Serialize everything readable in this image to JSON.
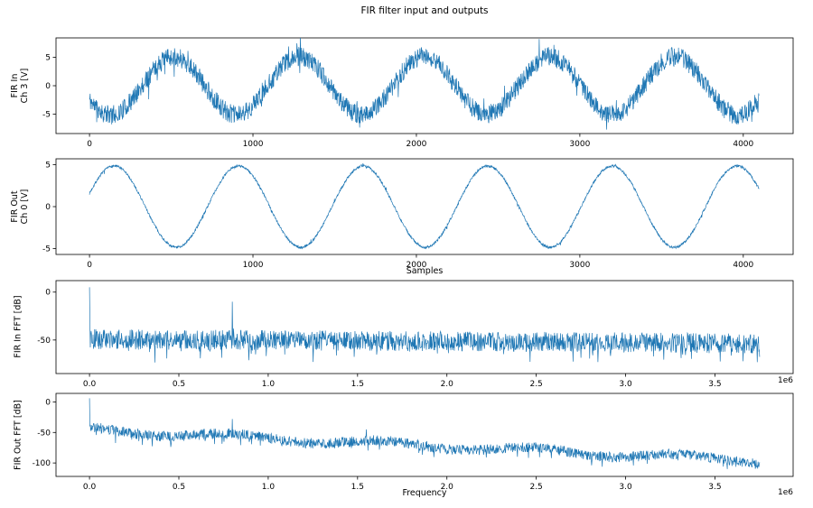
{
  "figure": {
    "title": "FIR filter input and outputs"
  },
  "axis_offset_label": "1e6",
  "chart_data": [
    {
      "id": "fir_in_time",
      "type": "line",
      "ylabel_lines": [
        "FIR In",
        "Ch 3 [V]"
      ],
      "xlabel": "",
      "x_range": [
        0,
        4096
      ],
      "xlim": [
        -205,
        4305
      ],
      "ylim": [
        -8.4,
        8.4
      ],
      "xticks": [
        0,
        1000,
        2000,
        3000,
        4000
      ],
      "xtick_labels": [
        "0",
        "1000",
        "2000",
        "3000",
        "4000"
      ],
      "yticks": [
        5,
        0,
        -5
      ],
      "ytick_labels": [
        "5",
        "0",
        "-5"
      ],
      "line_color": "#1f77b4",
      "description": "Noisy sine input: ~5.3 cycles over 0..4096 samples, amplitude ~5 V, wideband noise ~±2.5 V, peaks near x=500,1270,2050,2810,3580",
      "signal": {
        "kind": "noisy_sine",
        "seed": 11,
        "n": 2048,
        "x_min": 0,
        "x_max": 4096,
        "amplitude": 5.1,
        "period": 767,
        "phase_x": 322,
        "noise": 3.4,
        "spike_prob": 0.05,
        "spike": 5
      }
    },
    {
      "id": "fir_out_time",
      "type": "line",
      "ylabel_lines": [
        "FIR Out",
        "Ch 0 [V]"
      ],
      "xlabel": "Samples",
      "x_range": [
        0,
        4096
      ],
      "xlim": [
        -205,
        4305
      ],
      "ylim": [
        -5.7,
        5.7
      ],
      "xticks": [
        0,
        1000,
        2000,
        3000,
        4000
      ],
      "xtick_labels": [
        "0",
        "1000",
        "2000",
        "3000",
        "4000"
      ],
      "yticks": [
        5,
        0,
        -5
      ],
      "ytick_labels": [
        "5",
        "0",
        "-5"
      ],
      "line_color": "#1f77b4",
      "description": "Filtered clean sine output: ~5.4 cycles, amplitude ~5 V, small residual ripple, peaks near x=150,910,1670,2430,3190,3950",
      "signal": {
        "kind": "noisy_sine",
        "seed": 7,
        "n": 2048,
        "x_min": 0,
        "x_max": 4096,
        "amplitude": 4.85,
        "period": 762,
        "phase_x": -40,
        "noise": 0.3,
        "spike_prob": 0.02,
        "spike": 0.6
      }
    },
    {
      "id": "fir_in_fft",
      "type": "line",
      "ylabel_lines": [
        "FIR In FFT [dB]"
      ],
      "xlabel": "",
      "x_range": [
        0,
        3750000
      ],
      "xlim": [
        -187500,
        3937500
      ],
      "ylim": [
        -85,
        12
      ],
      "xticks": [
        0,
        500000,
        1000000,
        1500000,
        2000000,
        2500000,
        3000000,
        3500000
      ],
      "xtick_labels": [
        "0.0",
        "0.5",
        "1.0",
        "1.5",
        "2.0",
        "2.5",
        "3.0",
        "3.5"
      ],
      "yticks": [
        0,
        -50
      ],
      "ytick_labels": [
        "0",
        "-50"
      ],
      "x_offset_label": "1e6",
      "line_color": "#1f77b4",
      "description": "Input spectrum: flat noise floor ~-50 dB (spread -35..-78 dB), fundamental spike to ~5 dB at 0, secondary spike to ~-10 dB near 0.8e6 Hz",
      "signal": {
        "kind": "fft",
        "seed": 5,
        "n": 1700,
        "x_min": 0,
        "x_max": 3750000,
        "base": -49,
        "slope": -1.2,
        "noise": 21,
        "dip_prob": 0.05,
        "dip": 16,
        "floor": -80,
        "spikes": [
          {
            "x": 0,
            "y": 5
          },
          {
            "x": 2300,
            "y": -32
          },
          {
            "x": 800000,
            "y": -10
          },
          {
            "x": 806000,
            "y": -38
          }
        ]
      }
    },
    {
      "id": "fir_out_fft",
      "type": "line",
      "ylabel_lines": [
        "FIR Out FFT [dB]"
      ],
      "xlabel": "Frequency",
      "x_range": [
        0,
        3750000
      ],
      "xlim": [
        -187500,
        3937500
      ],
      "ylim": [
        -122,
        14
      ],
      "xticks": [
        0,
        500000,
        1000000,
        1500000,
        2000000,
        2500000,
        3000000,
        3500000
      ],
      "xtick_labels": [
        "0.0",
        "0.5",
        "1.0",
        "1.5",
        "2.0",
        "2.5",
        "3.0",
        "3.5"
      ],
      "yticks": [
        0,
        -50,
        -100
      ],
      "ytick_labels": [
        "0",
        "-50",
        "-100"
      ],
      "x_offset_label": "1e6",
      "line_color": "#1f77b4",
      "description": "Output spectrum: spike to ~6 dB at 0, noise floor decays from ~-45 dB to ~-95 dB with lumps, secondary spikes near 0.8e6 (~-28 dB) and 1.55e6 (~-45 dB)",
      "signal": {
        "kind": "fft",
        "seed": 9,
        "n": 1700,
        "x_min": 0,
        "x_max": 3750000,
        "base": -46,
        "slope": -13.5,
        "lump_amp": 5,
        "lump_freq": 7.5,
        "lump_phase": 1.8,
        "noise": 17,
        "dip_prob": 0.07,
        "dip": 14,
        "floor": -112,
        "spikes": [
          {
            "x": 0,
            "y": 6
          },
          {
            "x": 2300,
            "y": -40
          },
          {
            "x": 800000,
            "y": -28
          },
          {
            "x": 1550000,
            "y": -45
          }
        ]
      }
    }
  ]
}
